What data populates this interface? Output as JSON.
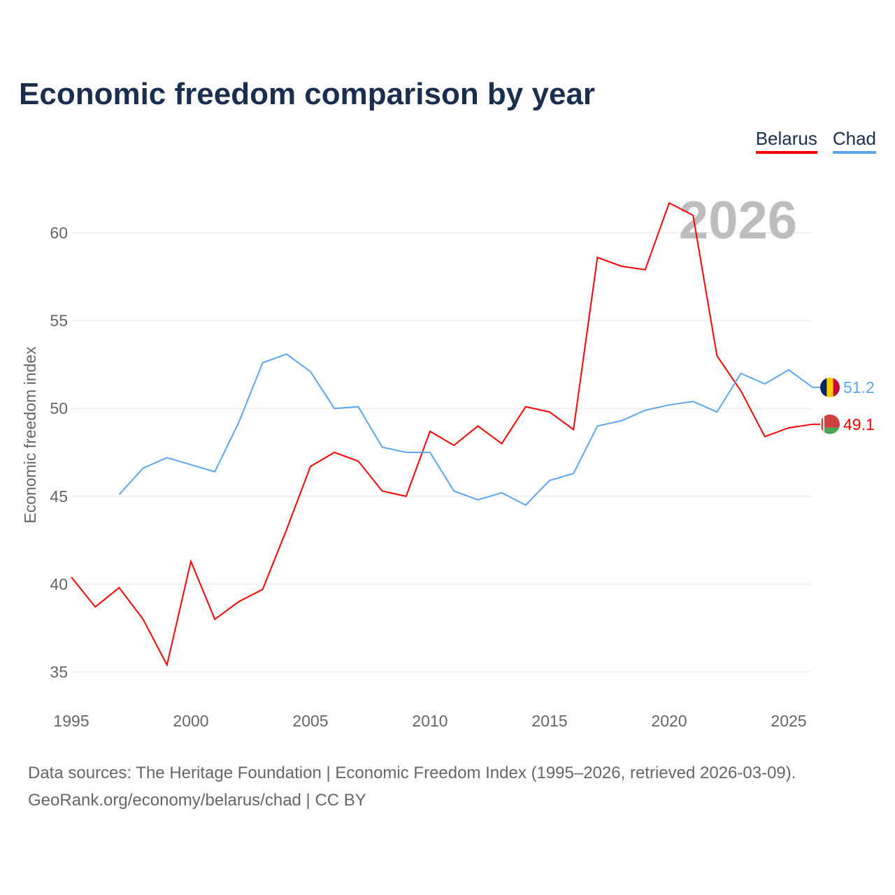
{
  "chart_data": {
    "type": "line",
    "title": "Economic freedom comparison by year",
    "xlabel": "",
    "ylabel": "Economic freedom index",
    "xlim": [
      1995,
      2026
    ],
    "ylim": [
      33,
      63
    ],
    "xticks": [
      1995,
      2000,
      2005,
      2010,
      2015,
      2020,
      2025
    ],
    "yticks": [
      35,
      40,
      45,
      50,
      55,
      60
    ],
    "grid": true,
    "legend_position": "top-right",
    "year_watermark": "2026",
    "series": [
      {
        "name": "Belarus",
        "color": "#ff0000",
        "end_label": "49.1",
        "x": [
          1995,
          1996,
          1997,
          1998,
          1999,
          2000,
          2001,
          2002,
          2003,
          2004,
          2005,
          2006,
          2007,
          2008,
          2009,
          2010,
          2011,
          2012,
          2013,
          2014,
          2015,
          2016,
          2017,
          2018,
          2019,
          2020,
          2021,
          2022,
          2023,
          2024,
          2025,
          2026
        ],
        "values": [
          40.4,
          38.7,
          39.8,
          38.0,
          35.4,
          41.3,
          38.0,
          39.0,
          39.7,
          43.1,
          46.7,
          47.5,
          47.0,
          45.3,
          45.0,
          48.7,
          47.9,
          49.0,
          48.0,
          50.1,
          49.8,
          48.8,
          58.6,
          58.1,
          57.9,
          61.7,
          61.0,
          53.0,
          51.0,
          48.4,
          48.9,
          49.1
        ]
      },
      {
        "name": "Chad",
        "color": "#5ea6ec",
        "end_label": "51.2",
        "x": [
          1997,
          1998,
          1999,
          2000,
          2001,
          2002,
          2003,
          2004,
          2005,
          2006,
          2007,
          2008,
          2009,
          2010,
          2011,
          2012,
          2013,
          2014,
          2015,
          2016,
          2017,
          2018,
          2019,
          2020,
          2021,
          2022,
          2023,
          2024,
          2025,
          2026
        ],
        "values": [
          45.1,
          46.6,
          47.2,
          46.8,
          46.4,
          49.2,
          52.6,
          53.1,
          52.1,
          50.0,
          50.1,
          47.8,
          47.5,
          47.5,
          45.3,
          44.8,
          45.2,
          44.5,
          45.9,
          46.3,
          49.0,
          49.3,
          49.9,
          50.2,
          50.4,
          49.8,
          52.0,
          51.4,
          52.2,
          51.2
        ]
      }
    ]
  },
  "footer": {
    "line1": "Data sources: The Heritage Foundation | Economic Freedom Index (1995–2026, retrieved 2026-03-09).",
    "line2": "GeoRank.org/economy/belarus/chad | CC BY"
  }
}
